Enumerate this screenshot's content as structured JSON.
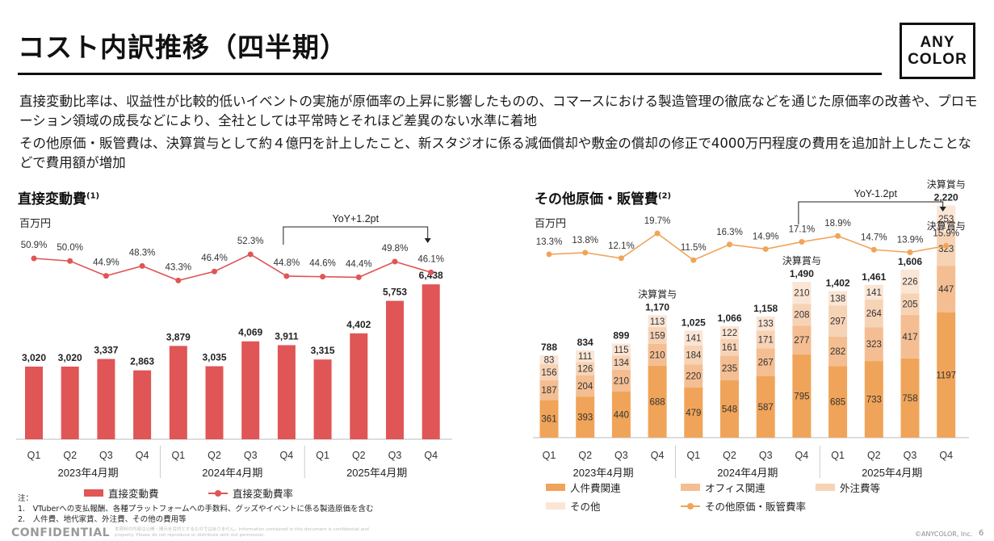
{
  "header": {
    "title": "コスト内訳推移（四半期）",
    "logo_line1": "ANY",
    "logo_line2": "COLOR"
  },
  "bullets": [
    "直接変動比率は、収益性が比較的低いイベントの実施が原価率の上昇に影響したものの、コマースにおける製造管理の徹底などを通じた原価率の改善や、プロモーション領域の成長などにより、全社としては平常時とそれほど差異のない水準に着地",
    "その他原価・販管費は、決算賞与として約４億円を計上したこと、新スタジオに係る減価償却や敷金の償却の修正で4000万円程度の費用を追加計上したことなどで費用額が増加"
  ],
  "left_panel": {
    "title": "直接変動費",
    "title_sup": "(1)",
    "unit": "百万円",
    "legend_bar": "直接変動費",
    "legend_line": "直接変動費率"
  },
  "right_panel": {
    "title": "その他原価・販管費",
    "title_sup": "(2)",
    "unit": "百万円",
    "legend": [
      "人件費関連",
      "オフィス関連",
      "外注費等",
      "その他",
      "その他原価・販管費率"
    ]
  },
  "notes": {
    "heading": "注：",
    "items": [
      "1.　VTuberへの支払報酬、各種プラットフォームへの手数料、グッズやイベントに係る製造原価を含む",
      "2.　人件費、地代家賃、外注費、その他の費用等"
    ]
  },
  "footer": {
    "confidential": "CONFIDENTIAL",
    "disclaimer": "本資料の内容は公開・開示を目的とするものではありません。Information contained in this document is confidential and property. Please do not reproduce or distribute with out permission.",
    "copyright": "©ANYCOLOR, Inc.",
    "page": "6"
  },
  "colors": {
    "bar_red": "#e05555",
    "line_red": "#e05555",
    "personnel": "#f0a459",
    "office": "#f4be92",
    "outsourcing": "#f7d3b6",
    "other": "#fbe5d5",
    "line_orange": "#f0a459"
  },
  "chart_data": [
    {
      "type": "bar",
      "title": "直接変動費",
      "unit": "百万円",
      "categories": [
        "Q1",
        "Q2",
        "Q3",
        "Q4",
        "Q1",
        "Q2",
        "Q3",
        "Q4",
        "Q1",
        "Q2",
        "Q3",
        "Q4"
      ],
      "groups": [
        "2023年4月期",
        "2024年4月期",
        "2025年4月期"
      ],
      "series": [
        {
          "name": "直接変動費",
          "type": "bar",
          "values": [
            3020,
            3020,
            3337,
            2863,
            3879,
            3035,
            4069,
            3911,
            3315,
            4402,
            5753,
            6438
          ],
          "labels": [
            "3,020",
            "3,020",
            "3,337",
            "2,863",
            "3,879",
            "3,035",
            "4,069",
            "3,911",
            "3,315",
            "4,402",
            "5,753",
            "6,438"
          ]
        },
        {
          "name": "直接変動費率",
          "type": "line",
          "values": [
            50.9,
            50.0,
            44.9,
            48.3,
            43.3,
            46.4,
            52.3,
            44.8,
            44.6,
            44.4,
            49.8,
            46.1
          ],
          "labels": [
            "50.9%",
            "50.0%",
            "44.9%",
            "48.3%",
            "43.3%",
            "46.4%",
            "52.3%",
            "44.8%",
            "44.6%",
            "44.4%",
            "49.8%",
            "46.1%"
          ]
        }
      ],
      "annotation": {
        "text": "YoY+1.2pt",
        "from_index": 7,
        "to_index": 11
      }
    },
    {
      "type": "bar",
      "title": "その他原価・販管費",
      "unit": "百万円",
      "categories": [
        "Q1",
        "Q2",
        "Q3",
        "Q4",
        "Q1",
        "Q2",
        "Q3",
        "Q4",
        "Q1",
        "Q2",
        "Q3",
        "Q4"
      ],
      "groups": [
        "2023年4月期",
        "2024年4月期",
        "2025年4月期"
      ],
      "stacked": true,
      "series": [
        {
          "name": "人件費関連",
          "type": "bar",
          "values": [
            361,
            393,
            440,
            688,
            479,
            548,
            587,
            795,
            685,
            733,
            758,
            1197
          ]
        },
        {
          "name": "オフィス関連",
          "type": "bar",
          "values": [
            187,
            204,
            210,
            210,
            220,
            235,
            267,
            277,
            282,
            323,
            417,
            447
          ]
        },
        {
          "name": "外注費等",
          "type": "bar",
          "values": [
            156,
            126,
            134,
            159,
            184,
            161,
            171,
            208,
            297,
            264,
            205,
            323
          ]
        },
        {
          "name": "その他",
          "type": "bar",
          "values": [
            83,
            111,
            115,
            113,
            141,
            122,
            133,
            210,
            138,
            141,
            226,
            253
          ]
        },
        {
          "name": "その他原価・販管費率",
          "type": "line",
          "values": [
            13.3,
            13.8,
            12.1,
            19.7,
            11.5,
            16.3,
            14.9,
            17.1,
            18.9,
            14.7,
            13.9,
            15.9
          ],
          "labels": [
            "13.3%",
            "13.8%",
            "12.1%",
            "19.7%",
            "11.5%",
            "16.3%",
            "14.9%",
            "17.1%",
            "18.9%",
            "14.7%",
            "13.9%",
            "15.9%"
          ]
        }
      ],
      "totals": [
        "788",
        "834",
        "899",
        "1,170",
        "1,025",
        "1,066",
        "1,158",
        "1,490",
        "1,402",
        "1,461",
        "1,606",
        "2,220"
      ],
      "total_values": [
        788,
        834,
        899,
        1170,
        1025,
        1066,
        1158,
        1490,
        1402,
        1461,
        1606,
        2220
      ],
      "bonus_label": "決算賞与",
      "bonus_indices": [
        3,
        7,
        11
      ],
      "annotation": {
        "text": "YoY-1.2pt",
        "from_index": 7,
        "to_index": 11
      }
    }
  ]
}
